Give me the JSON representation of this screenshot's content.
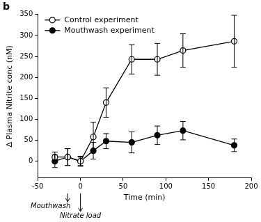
{
  "chart_data": {
    "type": "line",
    "title": "b",
    "x_label": "Time (min)",
    "y_label": "Δ Plasma Nitrite conc (nM)",
    "xlim": [
      -50,
      200
    ],
    "xticks": [
      -50,
      0,
      50,
      100,
      150,
      200
    ],
    "ylim": [
      -40,
      350
    ],
    "yticks": [
      0,
      50,
      100,
      150,
      200,
      250,
      300,
      350
    ],
    "grid": false,
    "legend": "upper left",
    "x": [
      -30,
      -15,
      0,
      15,
      30,
      60,
      90,
      120,
      180
    ],
    "series": [
      {
        "name": "Control experiment",
        "color": "#000000",
        "marker": "open_circle",
        "line_style": "solid",
        "values": [
          10,
          10,
          0,
          58,
          140,
          243,
          243,
          264,
          286
        ],
        "errors": [
          12,
          20,
          10,
          35,
          35,
          35,
          38,
          40,
          62
        ]
      },
      {
        "name": "Mouthwash experiment",
        "color": "#000000",
        "marker": "circle",
        "line_style": "solid",
        "values": [
          0,
          10,
          0,
          25,
          48,
          45,
          62,
          73,
          38
        ],
        "errors": [
          15,
          20,
          12,
          20,
          18,
          25,
          22,
          22,
          15
        ]
      }
    ],
    "annotations": [
      {
        "text": "Mouthwash",
        "x": -15
      },
      {
        "text": "Nitrate load",
        "x": 0
      }
    ]
  }
}
